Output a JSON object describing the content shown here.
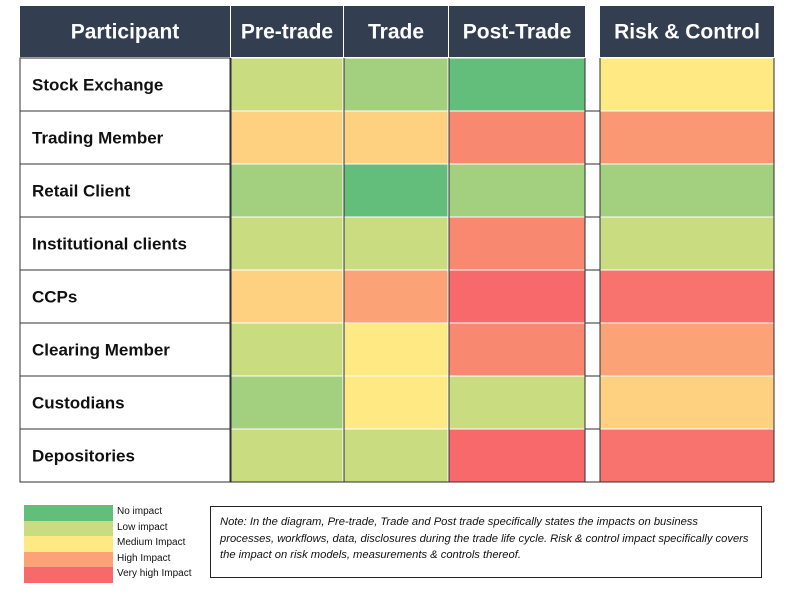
{
  "chart_data": {
    "type": "heatmap",
    "row_header": "Participant",
    "columns": [
      "Pre-trade",
      "Trade",
      "Post-Trade",
      "Risk & Control"
    ],
    "rows": [
      "Stock Exchange",
      "Trading Member",
      "Retail Client",
      "Institutional clients",
      "CCPs",
      "Clearing Member",
      "Custodians",
      "Depositories"
    ],
    "values": [
      [
        2,
        2,
        1,
        3
      ],
      [
        3,
        3,
        4,
        4
      ],
      [
        2,
        1,
        2,
        2
      ],
      [
        2,
        2,
        4,
        2
      ],
      [
        3,
        4,
        5,
        5
      ],
      [
        2,
        3,
        4,
        4
      ],
      [
        2,
        3,
        2,
        3
      ],
      [
        2,
        2,
        5,
        5
      ]
    ],
    "scale": [
      {
        "level": 1,
        "label": "No impact",
        "color": "#63be7b"
      },
      {
        "level": 2,
        "label": "Low impact",
        "color": "#c9dc80"
      },
      {
        "level": 3,
        "label": "Medium Impact",
        "color": "#fee983"
      },
      {
        "level": 4,
        "label": "High Impact",
        "color": "#fba276"
      },
      {
        "level": 5,
        "label": "Very high Impact",
        "color": "#f8696b"
      }
    ],
    "cell_colors": [
      [
        "#c9dc80",
        "#a3d07e",
        "#63be7b",
        "#fee983"
      ],
      [
        "#fdd17f",
        "#fdd17f",
        "#f98870",
        "#fa9873"
      ],
      [
        "#a3d07e",
        "#63be7b",
        "#a3d07e",
        "#a3d07e"
      ],
      [
        "#c9dc80",
        "#c9dc80",
        "#f98870",
        "#c9dc80"
      ],
      [
        "#fdd17f",
        "#fba276",
        "#f8696b",
        "#f8736d"
      ],
      [
        "#c9dc80",
        "#fee983",
        "#f98870",
        "#fba276"
      ],
      [
        "#a3d07e",
        "#fee983",
        "#c9dc80",
        "#fdd17f"
      ],
      [
        "#c9dc80",
        "#c9dc80",
        "#f8696b",
        "#f8736d"
      ]
    ],
    "header_color": "#333f50"
  },
  "note": "Note: In the diagram, Pre-trade, Trade and Post trade specifically states the impacts on business processes, workflows, data, disclosures during the trade life cycle. Risk & control impact specifically covers the impact on risk models, measurements & controls thereof."
}
